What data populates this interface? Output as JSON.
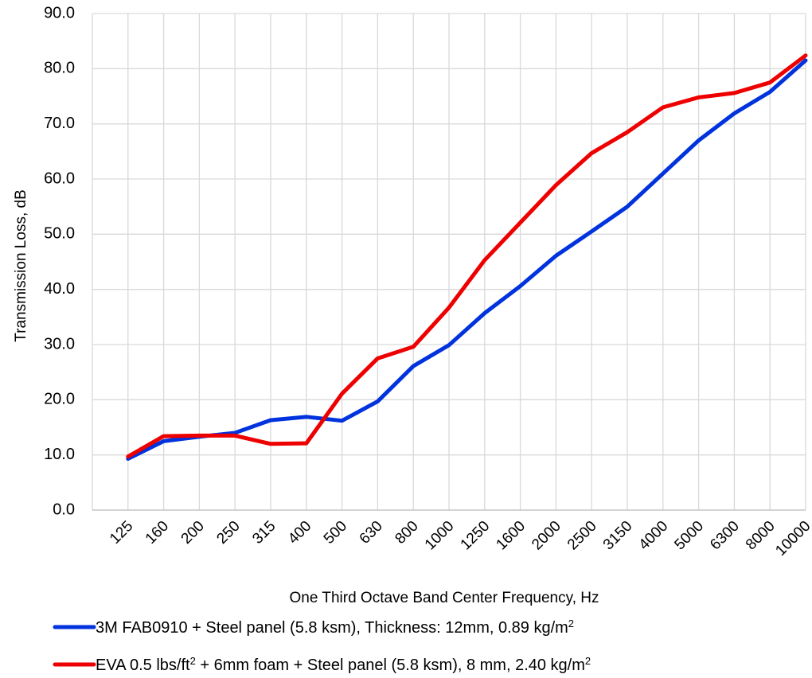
{
  "chart_data": {
    "type": "line",
    "xlabel": "One Third Octave Band Center Frequency, Hz",
    "ylabel": "Transmission Loss, dB",
    "ylim": [
      0,
      90
    ],
    "yticks": [
      "0.0",
      "10.0",
      "20.0",
      "30.0",
      "40.0",
      "50.0",
      "60.0",
      "70.0",
      "80.0",
      "90.0"
    ],
    "categories": [
      "125",
      "160",
      "200",
      "250",
      "315",
      "400",
      "500",
      "630",
      "800",
      "1000",
      "1250",
      "1600",
      "2000",
      "2500",
      "3150",
      "4000",
      "5000",
      "6300",
      "8000",
      "10000"
    ],
    "grid": true,
    "legend_position": "bottom",
    "series": [
      {
        "name_parts": [
          "3M FAB0910 + Steel panel (5.8 ksm), Thickness: 12mm,  0.89 kg/m",
          "2",
          ""
        ],
        "color": "#0033dd",
        "values": [
          9.3,
          12.5,
          13.3,
          14.0,
          16.3,
          16.9,
          16.2,
          19.7,
          26.1,
          29.9,
          35.7,
          40.6,
          46.1,
          50.5,
          55.0,
          61.0,
          67.0,
          71.9,
          75.8,
          81.5
        ]
      },
      {
        "name_parts": [
          "EVA 0.5 lbs/ft",
          "2",
          " + 6mm foam + Steel panel (5.8 ksm), 8 mm, 2.40 kg/m",
          "2"
        ],
        "color": "#ee0000",
        "values": [
          9.7,
          13.4,
          13.5,
          13.5,
          12.0,
          12.1,
          21.1,
          27.5,
          29.6,
          36.7,
          45.3,
          52.1,
          58.9,
          64.7,
          68.5,
          73.0,
          74.8,
          75.6,
          77.5,
          82.4
        ]
      }
    ]
  }
}
